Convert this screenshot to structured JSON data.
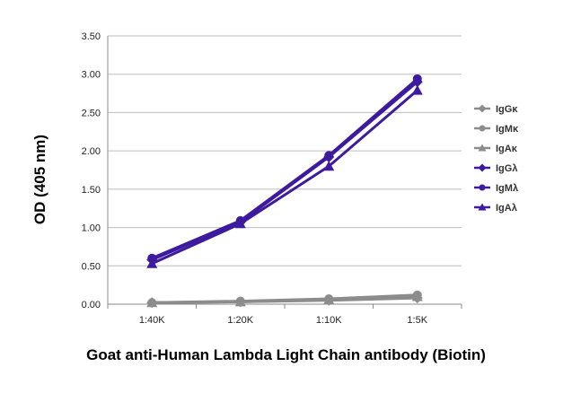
{
  "chart_data": {
    "type": "line",
    "title": "Goat anti-Human Lambda Light Chain antibody (Biotin)",
    "xlabel": "",
    "ylabel": "OD (405 nm)",
    "categories": [
      "1:40K",
      "1:20K",
      "1:10K",
      "1:5K"
    ],
    "ylim": [
      0,
      3.5
    ],
    "yticks": [
      "0.00",
      "0.50",
      "1.00",
      "1.50",
      "2.00",
      "2.50",
      "3.00",
      "3.50"
    ],
    "grid": true,
    "legend": "right",
    "series": [
      {
        "name": "IgGκ",
        "values": [
          0.02,
          0.03,
          0.05,
          0.08
        ],
        "color": "#8c8c8c",
        "marker": "diamond"
      },
      {
        "name": "IgMκ",
        "values": [
          0.02,
          0.04,
          0.07,
          0.12
        ],
        "color": "#8c8c8c",
        "marker": "circle"
      },
      {
        "name": "IgAκ",
        "values": [
          0.02,
          0.03,
          0.06,
          0.1
        ],
        "color": "#8c8c8c",
        "marker": "triangle"
      },
      {
        "name": "IgGλ",
        "values": [
          0.58,
          1.07,
          1.92,
          2.9
        ],
        "color": "#3d1a9e",
        "marker": "diamond"
      },
      {
        "name": "IgMλ",
        "values": [
          0.6,
          1.09,
          1.94,
          2.94
        ],
        "color": "#3d1a9e",
        "marker": "circle"
      },
      {
        "name": "IgAλ",
        "values": [
          0.53,
          1.05,
          1.8,
          2.79
        ],
        "color": "#3d1a9e",
        "marker": "triangle"
      }
    ]
  }
}
